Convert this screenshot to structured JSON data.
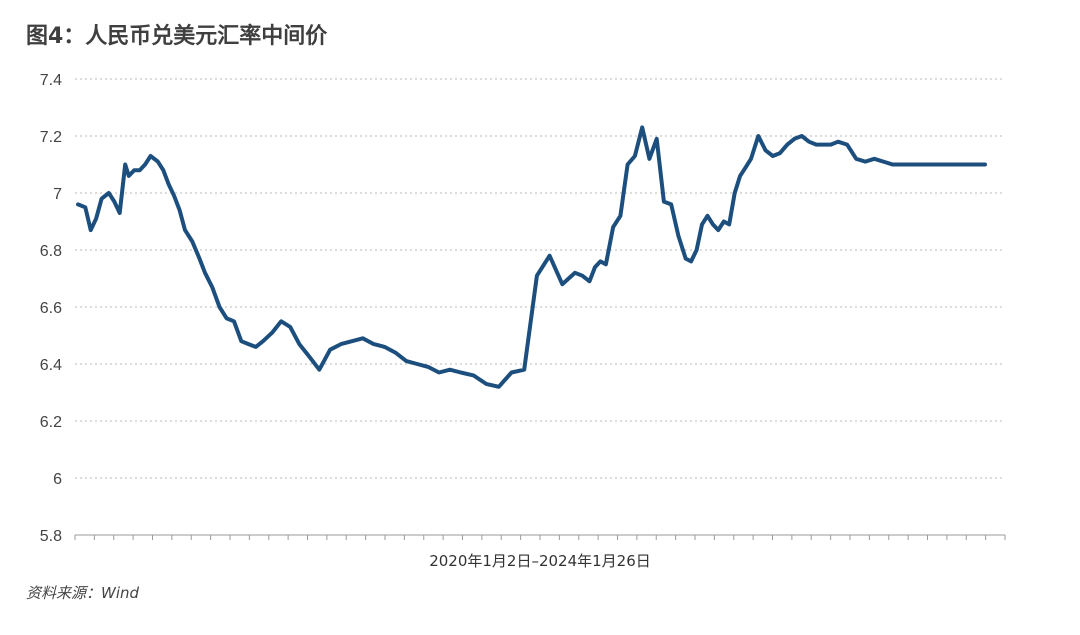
{
  "title": "图4：人民币兑美元汇率中间价",
  "source": "资料来源：Wind",
  "chart_data": {
    "type": "line",
    "xlabel": "2020年1月2日–2024年1月26日",
    "ylabel": "",
    "ylim": [
      5.8,
      7.4
    ],
    "y_ticks": [
      "7.4",
      "7.2",
      "7",
      "6.8",
      "6.6",
      "6.4",
      "6.2",
      "6",
      "5.8"
    ],
    "grid": true,
    "line_color": "#1d4f7e",
    "grid_color": "#b8b8b8",
    "x_range": [
      0,
      1
    ],
    "series": [
      {
        "name": "",
        "x": [
          0.0,
          0.008,
          0.014,
          0.02,
          0.026,
          0.034,
          0.04,
          0.046,
          0.052,
          0.056,
          0.062,
          0.068,
          0.074,
          0.08,
          0.088,
          0.094,
          0.1,
          0.106,
          0.112,
          0.118,
          0.126,
          0.134,
          0.14,
          0.148,
          0.156,
          0.164,
          0.172,
          0.18,
          0.188,
          0.196,
          0.204,
          0.214,
          0.224,
          0.234,
          0.244,
          0.254,
          0.266,
          0.278,
          0.29,
          0.302,
          0.314,
          0.326,
          0.338,
          0.35,
          0.362,
          0.374,
          0.386,
          0.398,
          0.41,
          0.422,
          0.436,
          0.45,
          0.464,
          0.478,
          0.492,
          0.506,
          0.52,
          0.534,
          0.548,
          0.556,
          0.564,
          0.57,
          0.576,
          0.582,
          0.59,
          0.598,
          0.606,
          0.614,
          0.622,
          0.63,
          0.638,
          0.646,
          0.654,
          0.662,
          0.67,
          0.676,
          0.682,
          0.688,
          0.694,
          0.7,
          0.706,
          0.712,
          0.718,
          0.724,
          0.73,
          0.736,
          0.742,
          0.75,
          0.758,
          0.766,
          0.774,
          0.782,
          0.79,
          0.798,
          0.806,
          0.814,
          0.822,
          0.83,
          0.838,
          0.848,
          0.858,
          0.868,
          0.878,
          0.888,
          0.898,
          0.908,
          0.918,
          0.928,
          0.938,
          0.948,
          0.958,
          0.968,
          0.978,
          0.988,
          1.0
        ],
        "values": [
          6.96,
          6.95,
          6.87,
          6.91,
          6.98,
          7.0,
          6.97,
          6.93,
          7.1,
          7.06,
          7.08,
          7.08,
          7.1,
          7.13,
          7.11,
          7.08,
          7.03,
          6.99,
          6.94,
          6.87,
          6.83,
          6.77,
          6.72,
          6.67,
          6.6,
          6.56,
          6.55,
          6.48,
          6.47,
          6.46,
          6.48,
          6.51,
          6.55,
          6.53,
          6.47,
          6.43,
          6.38,
          6.45,
          6.47,
          6.48,
          6.49,
          6.47,
          6.46,
          6.44,
          6.41,
          6.4,
          6.39,
          6.37,
          6.38,
          6.37,
          6.36,
          6.33,
          6.32,
          6.37,
          6.38,
          6.71,
          6.78,
          6.68,
          6.72,
          6.71,
          6.69,
          6.74,
          6.76,
          6.75,
          6.88,
          6.92,
          7.1,
          7.13,
          7.23,
          7.12,
          7.19,
          6.97,
          6.96,
          6.85,
          6.77,
          6.76,
          6.8,
          6.89,
          6.92,
          6.89,
          6.87,
          6.9,
          6.89,
          7.0,
          7.06,
          7.09,
          7.12,
          7.2,
          7.15,
          7.13,
          7.14,
          7.17,
          7.19,
          7.2,
          7.18,
          7.17,
          7.17,
          7.17,
          7.18,
          7.17,
          7.12,
          7.11,
          7.12,
          7.11,
          7.1,
          7.1,
          7.1,
          7.1,
          7.1,
          7.1,
          7.1,
          7.1,
          7.1,
          7.1,
          7.1
        ]
      }
    ]
  }
}
